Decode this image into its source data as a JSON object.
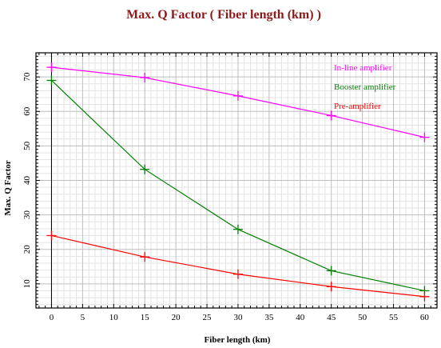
{
  "chart_data": {
    "type": "line",
    "title": "Max. Q Factor ( Fiber length (km) )",
    "xlabel": "Fiber length (km)",
    "ylabel": "Max. Q Factor",
    "x": [
      0,
      15,
      30,
      45,
      60
    ],
    "xlim": [
      -2.5,
      62
    ],
    "ylim": [
      3,
      77
    ],
    "xticks": [
      0,
      5,
      10,
      15,
      20,
      25,
      30,
      35,
      40,
      45,
      50,
      55,
      60
    ],
    "yticks": [
      10,
      20,
      30,
      40,
      50,
      60,
      70
    ],
    "grid": true,
    "legend_position": "top-right",
    "series": [
      {
        "name": "In-line amplifier",
        "color": "#ff00ff",
        "values": [
          72.8,
          69.8,
          64.5,
          58.8,
          52.5
        ]
      },
      {
        "name": "Booster amplifier",
        "color": "#008000",
        "values": [
          69.0,
          43.2,
          25.8,
          13.8,
          8.0
        ]
      },
      {
        "name": "Pre-amplifier",
        "color": "#ff0000",
        "values": [
          24.0,
          17.8,
          12.8,
          9.2,
          6.3
        ]
      }
    ]
  }
}
